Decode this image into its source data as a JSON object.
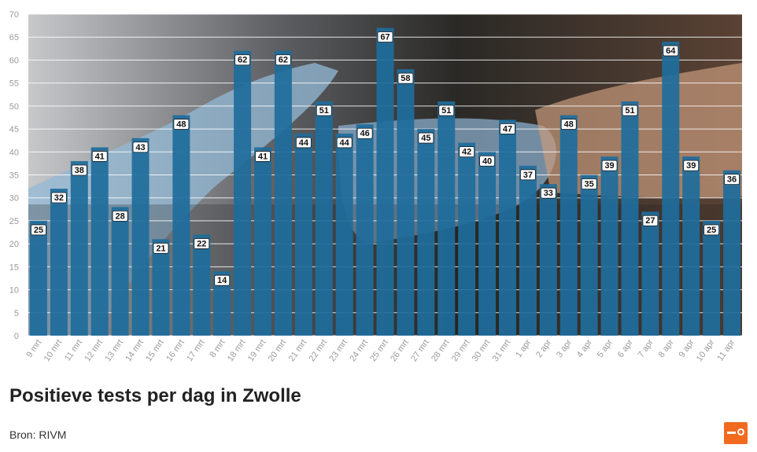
{
  "title": "Positieve tests per dag in Zwolle",
  "source": "Bron: RIVM",
  "colors": {
    "bar": "#1f6d9c",
    "grid": "#ffffff",
    "axis_text": "#9a9a9a",
    "accent": "#f26a1f"
  },
  "logo": {
    "icon": "rtv-oost-logo-icon"
  },
  "chart_data": {
    "type": "bar",
    "categories": [
      "9 mrt",
      "10 mrt",
      "11 mrt",
      "12 mrt",
      "13 mrt",
      "14 mrt",
      "15 mrt",
      "16 mrt",
      "17 mrt",
      "8 mrt",
      "18 mrt",
      "19 mrt",
      "20 mrt",
      "21 mrt",
      "22 mrt",
      "23 mrt",
      "24 mrt",
      "25 mrt",
      "26 mrt",
      "27 mrt",
      "28 mrt",
      "29 mrt",
      "30 mrt",
      "31 mrt",
      "1 apr",
      "2 apr",
      "3 apr",
      "4 apr",
      "5 apr",
      "6 apr",
      "7 apr",
      "8 apr",
      "9 apr",
      "10 apr",
      "11 apr"
    ],
    "values": [
      25,
      32,
      38,
      41,
      28,
      43,
      21,
      48,
      22,
      14,
      62,
      41,
      62,
      44,
      51,
      44,
      46,
      67,
      58,
      45,
      51,
      42,
      40,
      47,
      37,
      33,
      48,
      35,
      39,
      51,
      27,
      64,
      39,
      25,
      36
    ],
    "yticks": [
      0,
      5,
      10,
      15,
      20,
      25,
      30,
      35,
      40,
      45,
      50,
      55,
      60,
      65,
      70
    ],
    "ylim": [
      0,
      70
    ],
    "grid": true,
    "data_labels": true,
    "background": "photo-of-gloved-hand-with-test-swab"
  }
}
